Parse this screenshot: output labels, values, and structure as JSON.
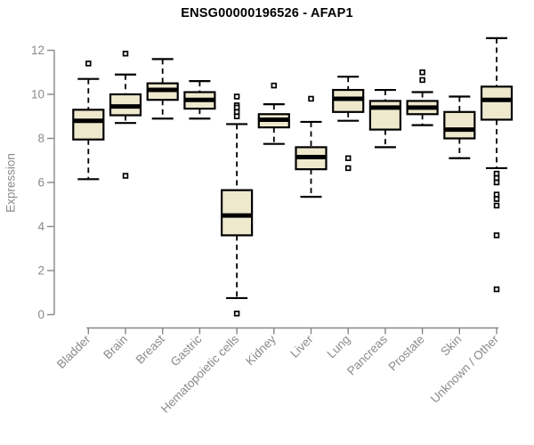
{
  "title": "ENSG00000196526 - AFAP1",
  "colors": {
    "title": "#000000",
    "axis": "#878787",
    "tick_label": "#8a8a8a",
    "box_fill": "#EEE8CD",
    "box_stroke": "#000000",
    "background": "#FFFFFF"
  },
  "chart_data": {
    "type": "boxplot",
    "title": "ENSG00000196526 - AFAP1",
    "xlabel": "",
    "ylabel": "Expression",
    "ylim": [
      0,
      12.6
    ],
    "yticks": [
      0,
      2,
      4,
      6,
      8,
      10,
      12
    ],
    "grid": false,
    "legend": false,
    "categories": [
      "Bladder",
      "Brain",
      "Breast",
      "Gastric",
      "Hematopoietic cells",
      "Kidney",
      "Liver",
      "Lung",
      "Pancreas",
      "Prostate",
      "Skin",
      "Unknown / Other"
    ],
    "series": [
      {
        "category": "Bladder",
        "whisker_low": 6.15,
        "q1": 7.95,
        "median": 8.8,
        "q3": 9.3,
        "whisker_high": 10.7,
        "outliers": [
          11.4
        ]
      },
      {
        "category": "Brain",
        "whisker_low": 8.7,
        "q1": 9.05,
        "median": 9.45,
        "q3": 10.0,
        "whisker_high": 10.9,
        "outliers": [
          11.85,
          6.3
        ]
      },
      {
        "category": "Breast",
        "whisker_low": 8.9,
        "q1": 9.75,
        "median": 10.2,
        "q3": 10.5,
        "whisker_high": 11.6,
        "outliers": []
      },
      {
        "category": "Gastric",
        "whisker_low": 8.9,
        "q1": 9.35,
        "median": 9.75,
        "q3": 10.1,
        "whisker_high": 10.6,
        "outliers": []
      },
      {
        "category": "Hematopoietic cells",
        "whisker_low": 0.75,
        "q1": 3.6,
        "median": 4.5,
        "q3": 5.65,
        "whisker_high": 8.65,
        "outliers": [
          9.9,
          9.5,
          9.4,
          9.2,
          9.0,
          0.05
        ]
      },
      {
        "category": "Kidney",
        "whisker_low": 7.75,
        "q1": 8.5,
        "median": 8.85,
        "q3": 9.1,
        "whisker_high": 9.55,
        "outliers": [
          10.4
        ]
      },
      {
        "category": "Liver",
        "whisker_low": 5.35,
        "q1": 6.6,
        "median": 7.15,
        "q3": 7.6,
        "whisker_high": 8.75,
        "outliers": [
          9.8
        ]
      },
      {
        "category": "Lung",
        "whisker_low": 8.8,
        "q1": 9.2,
        "median": 9.8,
        "q3": 10.2,
        "whisker_high": 10.8,
        "outliers": [
          7.1,
          6.65
        ]
      },
      {
        "category": "Pancreas",
        "whisker_low": 7.6,
        "q1": 8.4,
        "median": 9.4,
        "q3": 9.7,
        "whisker_high": 10.2,
        "outliers": []
      },
      {
        "category": "Prostate",
        "whisker_low": 8.6,
        "q1": 9.1,
        "median": 9.4,
        "q3": 9.7,
        "whisker_high": 10.1,
        "outliers": [
          11.0,
          10.65
        ]
      },
      {
        "category": "Skin",
        "whisker_low": 7.1,
        "q1": 8.0,
        "median": 8.4,
        "q3": 9.2,
        "whisker_high": 9.9,
        "outliers": []
      },
      {
        "category": "Unknown / Other",
        "whisker_low": 6.65,
        "q1": 8.85,
        "median": 9.75,
        "q3": 10.35,
        "whisker_high": 12.55,
        "outliers": [
          6.4,
          6.2,
          6.0,
          5.45,
          5.25,
          4.95,
          3.6,
          1.15
        ]
      }
    ]
  }
}
